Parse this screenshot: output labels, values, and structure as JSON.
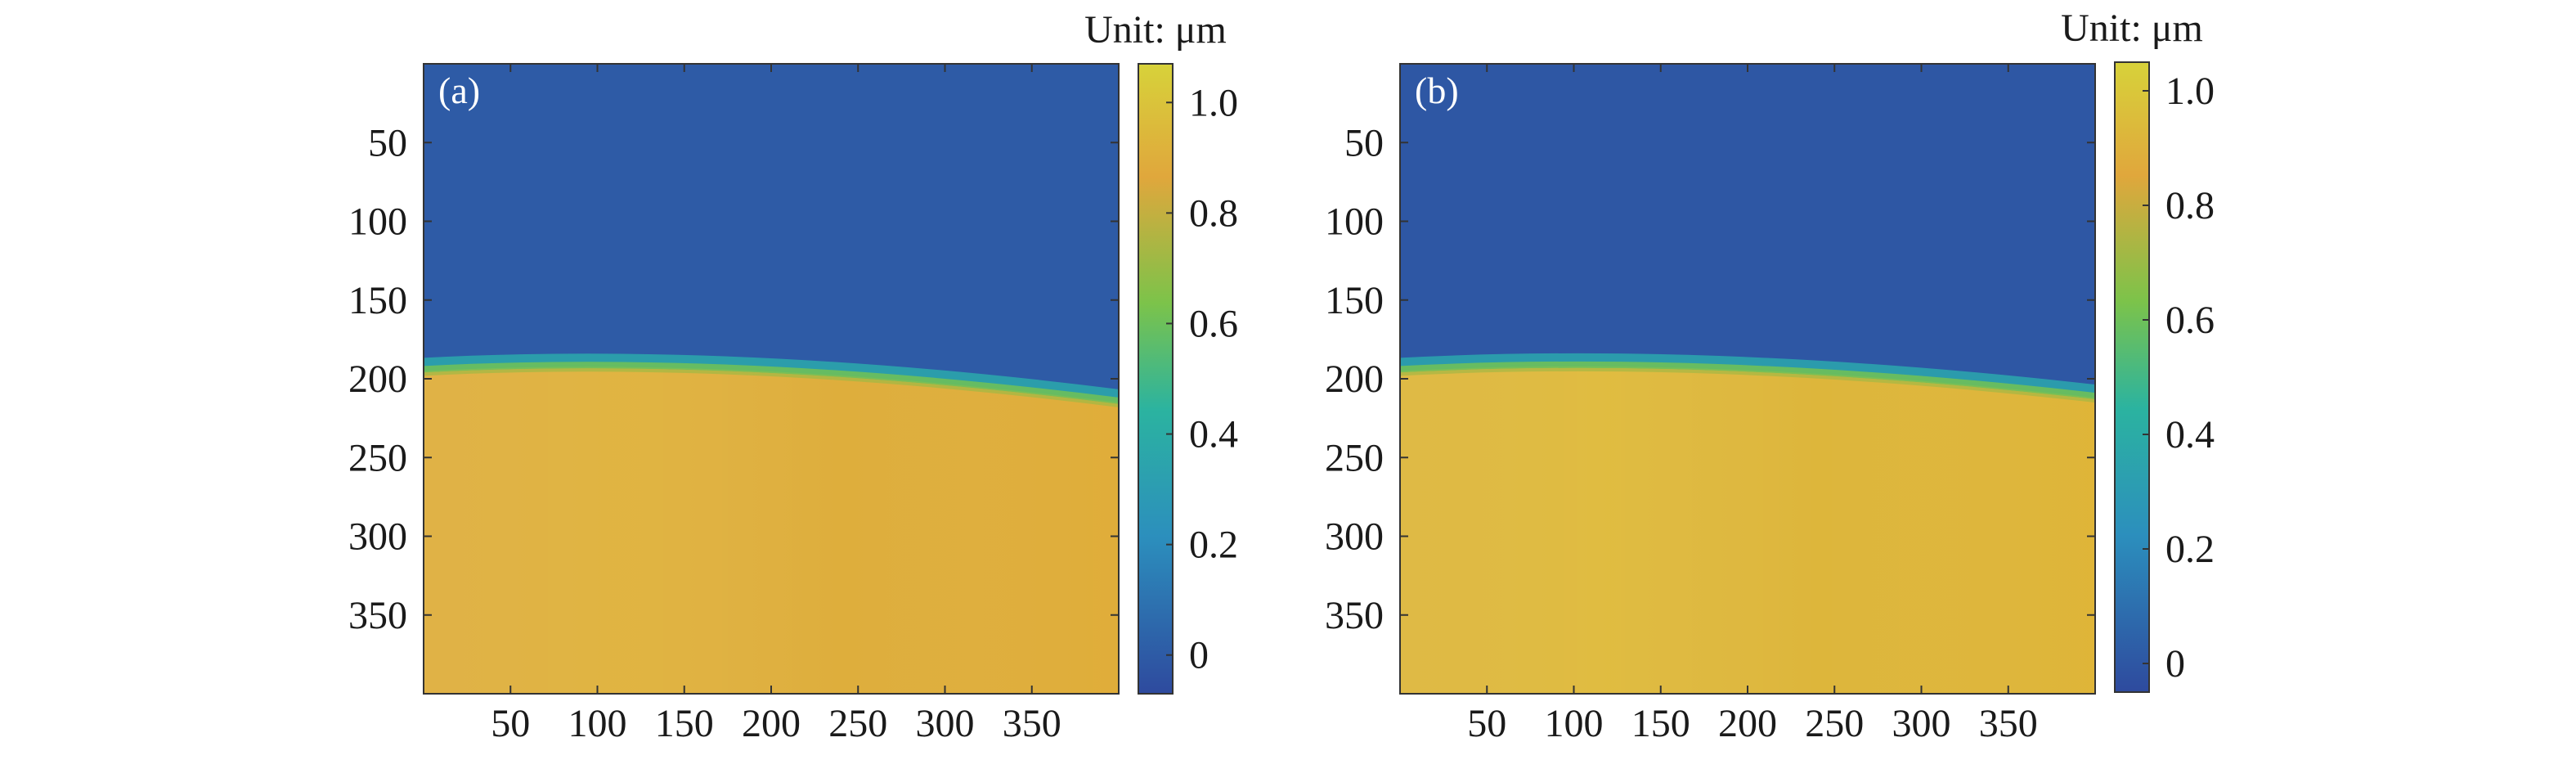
{
  "chart_data": [
    {
      "type": "heatmap",
      "panel_label": "(a)",
      "x_ticks": [
        50,
        100,
        150,
        200,
        250,
        300,
        350
      ],
      "y_ticks": [
        50,
        100,
        150,
        200,
        250,
        300,
        350
      ],
      "xlim": [
        0,
        400
      ],
      "ylim": [
        0,
        400
      ],
      "y_reversed": true,
      "colorbar": {
        "label": "Unit: μm",
        "range": [
          -0.07,
          1.07
        ],
        "ticks": [
          {
            "value": 0,
            "label": "0"
          },
          {
            "value": 0.2,
            "label": "0.2"
          },
          {
            "value": 0.4,
            "label": "0.4"
          },
          {
            "value": 0.6,
            "label": "0.6"
          },
          {
            "value": 0.8,
            "label": "0.8"
          },
          {
            "value": 1.0,
            "label": "1.0"
          }
        ]
      },
      "field": {
        "top_region_value": 0.0,
        "bottom_region_value": 0.9,
        "boundary_row_left": 195,
        "boundary_row_right": 215,
        "description": "step-height map: low region above a curved boundary, high region below"
      }
    },
    {
      "type": "heatmap",
      "panel_label": "(b)",
      "x_ticks": [
        50,
        100,
        150,
        200,
        250,
        300,
        350
      ],
      "y_ticks": [
        50,
        100,
        150,
        200,
        250,
        300,
        350
      ],
      "xlim": [
        0,
        400
      ],
      "ylim": [
        0,
        400
      ],
      "y_reversed": true,
      "colorbar": {
        "label": "Unit: μm",
        "range": [
          -0.05,
          1.05
        ],
        "ticks": [
          {
            "value": 0,
            "label": "0"
          },
          {
            "value": 0.2,
            "label": "0.2"
          },
          {
            "value": 0.4,
            "label": "0.4"
          },
          {
            "value": 0.6,
            "label": "0.6"
          },
          {
            "value": 0.8,
            "label": "0.8"
          },
          {
            "value": 1.0,
            "label": "1.0"
          }
        ]
      },
      "field": {
        "top_region_value": 0.0,
        "bottom_region_value": 0.92,
        "boundary_row_left": 195,
        "boundary_row_right": 212,
        "description": "step-height map: low region above a curved boundary, high region below"
      }
    }
  ],
  "colors": {
    "low": "#2e4a9e",
    "mid_blue": "#2c8fbd",
    "teal": "#2bb3a0",
    "green": "#7cc34a",
    "high": "#e0a73c",
    "top": "#d7d23a"
  }
}
